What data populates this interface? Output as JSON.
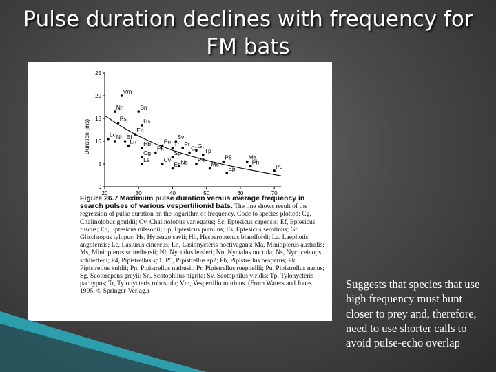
{
  "slide": {
    "title_line1": "Pulse duration declines with frequency for",
    "title_line2": "FM bats",
    "note": "Suggests that species that use high frequency must hunt closer to prey and, therefore, need to use shorter calls to avoid pulse-echo overlap"
  },
  "colors": {
    "background": "#4a4a4a",
    "deco_teal": "#2aa8b8",
    "figure_bg": "#ffffff"
  },
  "chart_data": {
    "type": "scatter",
    "xlabel": "Frequency (kHz)",
    "ylabel": "Duration (ms)",
    "xlim": [
      20,
      72
    ],
    "ylim": [
      0,
      25
    ],
    "xticks": [
      "20",
      "30",
      "40",
      "50",
      "60",
      "70"
    ],
    "yticks": [
      "0",
      "5",
      "10",
      "15",
      "20",
      "25"
    ],
    "grid": false,
    "series": [
      {
        "points": [
          {
            "label": "Vm",
            "x": 25.0,
            "y": 20.0
          },
          {
            "label": "Nn",
            "x": 23.0,
            "y": 16.5
          },
          {
            "label": "Sn",
            "x": 30.0,
            "y": 16.5
          },
          {
            "label": "Es",
            "x": 24.0,
            "y": 14.0
          },
          {
            "label": "Hs",
            "x": 31.0,
            "y": 13.5
          },
          {
            "label": "En",
            "x": 29.0,
            "y": 11.5
          },
          {
            "label": "Lc",
            "x": 21.0,
            "y": 10.5
          },
          {
            "label": "Nl",
            "x": 23.0,
            "y": 10.0
          },
          {
            "label": "Ef",
            "x": 26.0,
            "y": 10.0
          },
          {
            "label": "Ln",
            "x": 27.0,
            "y": 9.0
          },
          {
            "label": "Hb",
            "x": 31.0,
            "y": 8.5
          },
          {
            "label": "Sv",
            "x": 41.0,
            "y": 10.0
          },
          {
            "label": "Pn",
            "x": 37.0,
            "y": 9.0
          },
          {
            "label": "Tr",
            "x": 40.0,
            "y": 8.5
          },
          {
            "label": "Pr",
            "x": 43.0,
            "y": 8.5
          },
          {
            "label": "Ct",
            "x": 45.0,
            "y": 7.5
          },
          {
            "label": "Gt",
            "x": 47.0,
            "y": 8.0
          },
          {
            "label": "Pk",
            "x": 35.0,
            "y": 7.5
          },
          {
            "label": "Tp",
            "x": 49.0,
            "y": 7.0
          },
          {
            "label": "Cg",
            "x": 31.0,
            "y": 6.5
          },
          {
            "label": "Sg",
            "x": 40.0,
            "y": 6.5
          },
          {
            "label": "P5",
            "x": 55.0,
            "y": 5.5
          },
          {
            "label": "P4",
            "x": 47.0,
            "y": 5.0
          },
          {
            "label": "Ma",
            "x": 62.0,
            "y": 5.5
          },
          {
            "label": "Ph",
            "x": 63.0,
            "y": 4.5
          },
          {
            "label": "La",
            "x": 31.0,
            "y": 5.0
          },
          {
            "label": "Cv",
            "x": 37.0,
            "y": 5.0
          },
          {
            "label": "Ns",
            "x": 42.0,
            "y": 4.5
          },
          {
            "label": "Ec",
            "x": 40.0,
            "y": 4.0
          },
          {
            "label": "Ms",
            "x": 51.0,
            "y": 4.0
          },
          {
            "label": "Ep",
            "x": 56.0,
            "y": 3.0
          },
          {
            "label": "Pu",
            "x": 70.0,
            "y": 3.5
          }
        ]
      }
    ],
    "regression": [
      {
        "x": 20,
        "y": 15.6
      },
      {
        "x": 25,
        "y": 13.2
      },
      {
        "x": 30,
        "y": 11.1
      },
      {
        "x": 35,
        "y": 9.4
      },
      {
        "x": 40,
        "y": 8.0
      },
      {
        "x": 45,
        "y": 6.8
      },
      {
        "x": 50,
        "y": 5.8
      },
      {
        "x": 55,
        "y": 4.9
      },
      {
        "x": 60,
        "y": 4.1
      },
      {
        "x": 65,
        "y": 3.4
      },
      {
        "x": 72,
        "y": 2.4
      }
    ],
    "caption": {
      "figure_number": "Figure 26.7",
      "figure_title": "Maximum pulse duration versus average frequency in search pulses of various vespertilionid bats.",
      "text": "The line shows result of the regression of pulse duration on the logarithm of frequency. Code to species plotted: Cg, Chalinolobus gouldii; Cv, Chalinolobus variegatus; Ec, Eptesicus capensis; Ef, Eptesicus fuscus; En, Eptesicus nilssonii; Ep, Eptesicus pumilus; Es, Eptesicus serotinus; Gt, Glischropus tylopus; Hs, Hypsugo savii; Hb, Hesperoptenus blandfordi; La, Laephotis angolensis; Lc, Lasiurus cinereus; Ln, Lasionycteris noctivagans; Ma, Miniopterus australis; Ms, Miniopterus schreibersii; Nl, Nyctalus leisleri; Nn, Nyctalus noctula; Ns, Nycticeinops schlieffeni; P4, Pipistrellus sp1; P5, Pipistrellus sp2; Ph, Pipistrellus hesperus; Pk, Pipistrellus kuhlii; Pn, Pipistrellus nathusii; Pr, Pipistrellus rueppellii; Pu, Pipistrellus nanus; Sg, Scotorepens greyii; Sn, Scotophilus nigrita; Sv, Scotophilus viridis; Tp, Tylonycteris pachypus; Tr, Tylonycteris robustula; Vm, Vespertilio murinus. (From Waters and Jones 1995. © Springer-Verlag.)"
    }
  }
}
